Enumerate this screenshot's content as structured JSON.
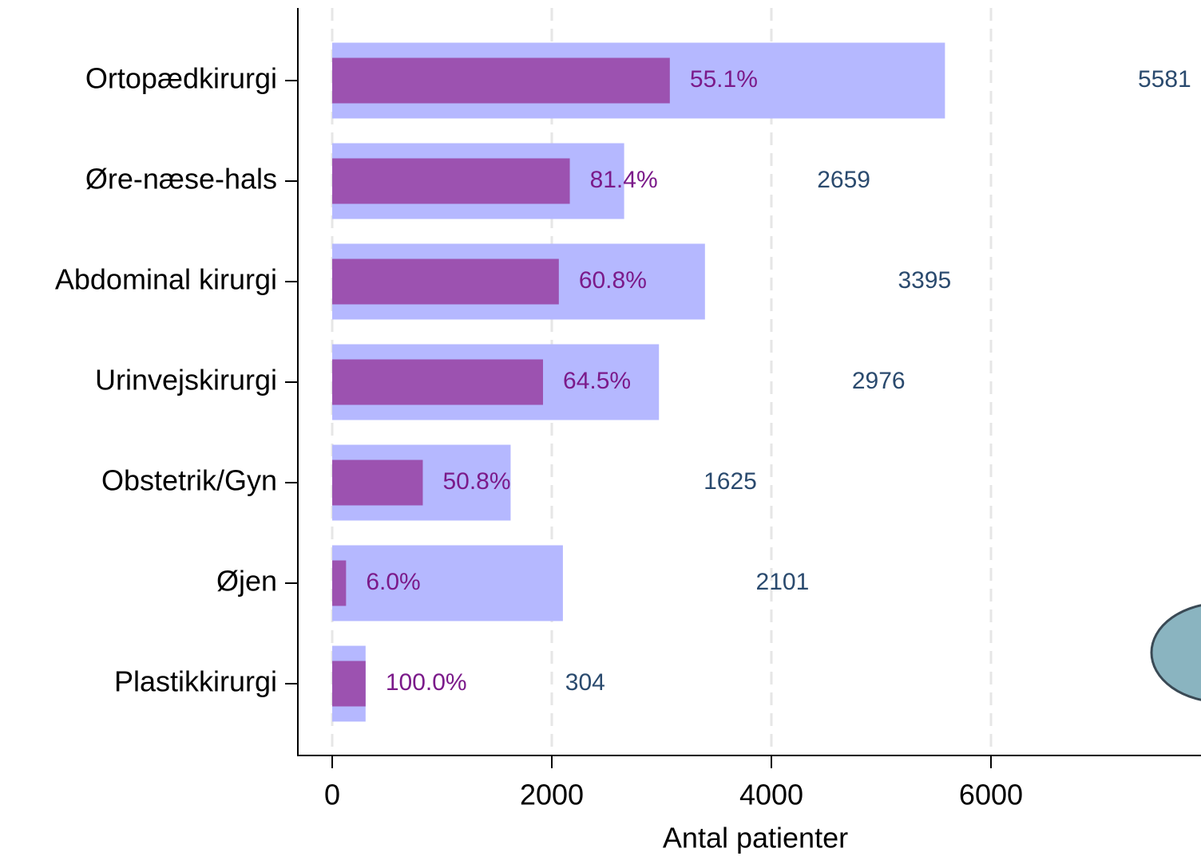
{
  "chart_data": {
    "type": "hbar_overlay",
    "xlabel": "Antal patienter",
    "categories": [
      "Ortopædkirurgi",
      "Øre-næse-hals",
      "Abdominal kirurgi",
      "Urinvejskirurgi",
      "Obstetrik/Gyn",
      "Øjen",
      "Plastikkirurgi"
    ],
    "series": [
      {
        "color": "#b5b8ff",
        "label_color": "#2a4a6e",
        "values": [
          5581,
          2659,
          3395,
          2976,
          1625,
          2101,
          304
        ]
      },
      {
        "color": "#9c52b0",
        "label_color": "#7b1a8a",
        "values": [
          3075,
          2164,
          2064,
          1920,
          825,
          126,
          304
        ],
        "percent_labels": [
          "55.1%",
          "81.4%",
          "60.8%",
          "64.5%",
          "50.8%",
          "6.0%",
          "100.0%"
        ]
      }
    ],
    "xlim": [
      -313,
      7913
    ],
    "xticks": [
      0,
      2000,
      4000,
      6000
    ],
    "grid": true
  }
}
